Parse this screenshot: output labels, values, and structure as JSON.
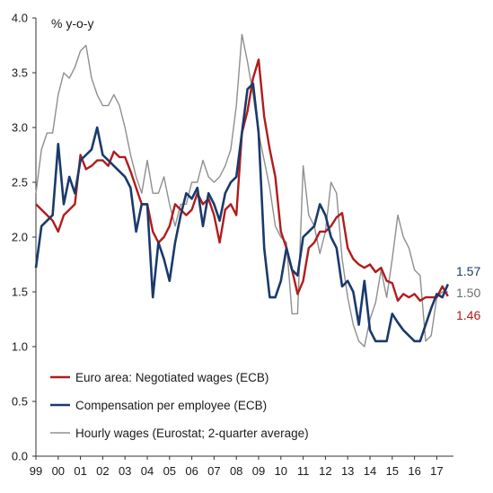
{
  "chart_data": {
    "type": "line",
    "unit_label": "% y-o-y",
    "ylim": [
      0.0,
      4.0
    ],
    "y_ticks": [
      "0.0",
      "0.5",
      "1.0",
      "1.5",
      "2.0",
      "2.5",
      "3.0",
      "3.5",
      "4.0"
    ],
    "x_range": [
      1999,
      2017.75
    ],
    "x_ticks": [
      "99",
      "00",
      "01",
      "02",
      "03",
      "04",
      "05",
      "06",
      "07",
      "08",
      "09",
      "10",
      "11",
      "12",
      "13",
      "14",
      "15",
      "16",
      "17"
    ],
    "grid": false,
    "legend_placement": "bottom-left",
    "series": [
      {
        "name": "Euro area: Negotiated wages (ECB)",
        "color": "#b01c1c",
        "values": [
          [
            1999.0,
            2.3
          ],
          [
            1999.25,
            2.25
          ],
          [
            1999.5,
            2.2
          ],
          [
            1999.75,
            2.15
          ],
          [
            2000.0,
            2.05
          ],
          [
            2000.25,
            2.2
          ],
          [
            2000.5,
            2.25
          ],
          [
            2000.75,
            2.3
          ],
          [
            2001.0,
            2.75
          ],
          [
            2001.25,
            2.62
          ],
          [
            2001.5,
            2.65
          ],
          [
            2001.75,
            2.7
          ],
          [
            2002.0,
            2.7
          ],
          [
            2002.25,
            2.65
          ],
          [
            2002.5,
            2.78
          ],
          [
            2002.75,
            2.73
          ],
          [
            2003.0,
            2.73
          ],
          [
            2003.25,
            2.6
          ],
          [
            2003.5,
            2.45
          ],
          [
            2003.75,
            2.3
          ],
          [
            2004.0,
            2.3
          ],
          [
            2004.25,
            2.05
          ],
          [
            2004.5,
            1.95
          ],
          [
            2004.75,
            2.0
          ],
          [
            2005.0,
            2.1
          ],
          [
            2005.25,
            2.3
          ],
          [
            2005.5,
            2.25
          ],
          [
            2005.75,
            2.2
          ],
          [
            2006.0,
            2.25
          ],
          [
            2006.25,
            2.4
          ],
          [
            2006.5,
            2.3
          ],
          [
            2006.75,
            2.35
          ],
          [
            2007.0,
            2.2
          ],
          [
            2007.25,
            1.95
          ],
          [
            2007.5,
            2.25
          ],
          [
            2007.75,
            2.3
          ],
          [
            2008.0,
            2.2
          ],
          [
            2008.25,
            2.95
          ],
          [
            2008.5,
            3.15
          ],
          [
            2008.75,
            3.45
          ],
          [
            2009.0,
            3.62
          ],
          [
            2009.25,
            3.1
          ],
          [
            2009.5,
            2.8
          ],
          [
            2009.75,
            2.55
          ],
          [
            2010.0,
            2.05
          ],
          [
            2010.25,
            1.9
          ],
          [
            2010.5,
            1.7
          ],
          [
            2010.75,
            1.48
          ],
          [
            2011.0,
            1.6
          ],
          [
            2011.25,
            1.9
          ],
          [
            2011.5,
            1.95
          ],
          [
            2011.75,
            2.05
          ],
          [
            2012.0,
            2.05
          ],
          [
            2012.25,
            2.1
          ],
          [
            2012.5,
            2.18
          ],
          [
            2012.75,
            2.22
          ],
          [
            2013.0,
            1.9
          ],
          [
            2013.25,
            1.8
          ],
          [
            2013.5,
            1.75
          ],
          [
            2013.75,
            1.72
          ],
          [
            2014.0,
            1.75
          ],
          [
            2014.25,
            1.68
          ],
          [
            2014.5,
            1.72
          ],
          [
            2014.75,
            1.6
          ],
          [
            2015.0,
            1.58
          ],
          [
            2015.25,
            1.42
          ],
          [
            2015.5,
            1.48
          ],
          [
            2015.75,
            1.45
          ],
          [
            2016.0,
            1.48
          ],
          [
            2016.25,
            1.42
          ],
          [
            2016.5,
            1.45
          ],
          [
            2016.75,
            1.45
          ],
          [
            2017.0,
            1.45
          ],
          [
            2017.25,
            1.55
          ],
          [
            2017.5,
            1.46
          ]
        ]
      },
      {
        "name": "Compensation per employee (ECB)",
        "color": "#1b3a6b",
        "values": [
          [
            1999.0,
            1.72
          ],
          [
            1999.25,
            2.1
          ],
          [
            1999.5,
            2.15
          ],
          [
            1999.75,
            2.2
          ],
          [
            2000.0,
            2.85
          ],
          [
            2000.25,
            2.3
          ],
          [
            2000.5,
            2.55
          ],
          [
            2000.75,
            2.4
          ],
          [
            2001.0,
            2.7
          ],
          [
            2001.25,
            2.75
          ],
          [
            2001.5,
            2.8
          ],
          [
            2001.75,
            3.0
          ],
          [
            2002.0,
            2.75
          ],
          [
            2002.25,
            2.7
          ],
          [
            2002.5,
            2.65
          ],
          [
            2002.75,
            2.6
          ],
          [
            2003.0,
            2.55
          ],
          [
            2003.25,
            2.45
          ],
          [
            2003.5,
            2.05
          ],
          [
            2003.75,
            2.3
          ],
          [
            2004.0,
            2.3
          ],
          [
            2004.25,
            1.45
          ],
          [
            2004.5,
            1.95
          ],
          [
            2004.75,
            1.8
          ],
          [
            2005.0,
            1.6
          ],
          [
            2005.25,
            1.95
          ],
          [
            2005.5,
            2.2
          ],
          [
            2005.75,
            2.4
          ],
          [
            2006.0,
            2.35
          ],
          [
            2006.25,
            2.45
          ],
          [
            2006.5,
            2.1
          ],
          [
            2006.75,
            2.4
          ],
          [
            2007.0,
            2.3
          ],
          [
            2007.25,
            2.15
          ],
          [
            2007.5,
            2.4
          ],
          [
            2007.75,
            2.5
          ],
          [
            2008.0,
            2.55
          ],
          [
            2008.25,
            2.95
          ],
          [
            2008.5,
            3.35
          ],
          [
            2008.75,
            3.4
          ],
          [
            2009.0,
            2.95
          ],
          [
            2009.25,
            1.9
          ],
          [
            2009.5,
            1.45
          ],
          [
            2009.75,
            1.45
          ],
          [
            2010.0,
            1.6
          ],
          [
            2010.25,
            1.9
          ],
          [
            2010.5,
            1.7
          ],
          [
            2010.75,
            1.65
          ],
          [
            2011.0,
            2.0
          ],
          [
            2011.25,
            2.05
          ],
          [
            2011.5,
            2.1
          ],
          [
            2011.75,
            2.3
          ],
          [
            2012.0,
            2.2
          ],
          [
            2012.25,
            2.0
          ],
          [
            2012.5,
            1.9
          ],
          [
            2012.75,
            1.55
          ],
          [
            2013.0,
            1.6
          ],
          [
            2013.25,
            1.5
          ],
          [
            2013.5,
            1.2
          ],
          [
            2013.75,
            1.6
          ],
          [
            2014.0,
            1.15
          ],
          [
            2014.25,
            1.05
          ],
          [
            2014.5,
            1.05
          ],
          [
            2014.75,
            1.05
          ],
          [
            2015.0,
            1.3
          ],
          [
            2015.25,
            1.22
          ],
          [
            2015.5,
            1.15
          ],
          [
            2015.75,
            1.1
          ],
          [
            2016.0,
            1.05
          ],
          [
            2016.25,
            1.05
          ],
          [
            2016.5,
            1.2
          ],
          [
            2016.75,
            1.35
          ],
          [
            2017.0,
            1.48
          ],
          [
            2017.25,
            1.45
          ],
          [
            2017.5,
            1.57
          ]
        ]
      },
      {
        "name": "Hourly wages (Eurostat; 2-quarter average)",
        "color": "#8f8f8f",
        "values": [
          [
            1999.0,
            2.4
          ],
          [
            1999.25,
            2.8
          ],
          [
            1999.5,
            2.95
          ],
          [
            1999.75,
            2.95
          ],
          [
            2000.0,
            3.3
          ],
          [
            2000.25,
            3.5
          ],
          [
            2000.5,
            3.45
          ],
          [
            2000.75,
            3.55
          ],
          [
            2001.0,
            3.7
          ],
          [
            2001.25,
            3.75
          ],
          [
            2001.5,
            3.45
          ],
          [
            2001.75,
            3.3
          ],
          [
            2002.0,
            3.2
          ],
          [
            2002.25,
            3.2
          ],
          [
            2002.5,
            3.3
          ],
          [
            2002.75,
            3.2
          ],
          [
            2003.0,
            3.0
          ],
          [
            2003.25,
            2.75
          ],
          [
            2003.5,
            2.55
          ],
          [
            2003.75,
            2.4
          ],
          [
            2004.0,
            2.7
          ],
          [
            2004.25,
            2.4
          ],
          [
            2004.5,
            2.4
          ],
          [
            2004.75,
            2.55
          ],
          [
            2005.0,
            2.3
          ],
          [
            2005.25,
            2.1
          ],
          [
            2005.5,
            2.3
          ],
          [
            2005.75,
            2.3
          ],
          [
            2006.0,
            2.5
          ],
          [
            2006.25,
            2.5
          ],
          [
            2006.5,
            2.7
          ],
          [
            2006.75,
            2.55
          ],
          [
            2007.0,
            2.5
          ],
          [
            2007.25,
            2.55
          ],
          [
            2007.5,
            2.65
          ],
          [
            2007.75,
            2.8
          ],
          [
            2008.0,
            3.2
          ],
          [
            2008.25,
            3.85
          ],
          [
            2008.5,
            3.6
          ],
          [
            2008.75,
            3.3
          ],
          [
            2009.0,
            2.95
          ],
          [
            2009.25,
            2.7
          ],
          [
            2009.5,
            2.45
          ],
          [
            2009.75,
            2.1
          ],
          [
            2010.0,
            2.0
          ],
          [
            2010.25,
            1.95
          ],
          [
            2010.5,
            1.3
          ],
          [
            2010.75,
            1.3
          ],
          [
            2011.0,
            2.65
          ],
          [
            2011.25,
            2.2
          ],
          [
            2011.5,
            2.1
          ],
          [
            2011.75,
            1.85
          ],
          [
            2012.0,
            2.05
          ],
          [
            2012.25,
            2.5
          ],
          [
            2012.5,
            2.4
          ],
          [
            2012.75,
            1.8
          ],
          [
            2013.0,
            1.45
          ],
          [
            2013.25,
            1.2
          ],
          [
            2013.5,
            1.05
          ],
          [
            2013.75,
            1.0
          ],
          [
            2014.0,
            1.25
          ],
          [
            2014.25,
            1.4
          ],
          [
            2014.5,
            1.7
          ],
          [
            2014.75,
            1.45
          ],
          [
            2015.0,
            1.8
          ],
          [
            2015.25,
            2.2
          ],
          [
            2015.5,
            2.0
          ],
          [
            2015.75,
            1.9
          ],
          [
            2016.0,
            1.7
          ],
          [
            2016.25,
            1.65
          ],
          [
            2016.5,
            1.05
          ],
          [
            2016.75,
            1.1
          ],
          [
            2017.0,
            1.45
          ],
          [
            2017.25,
            1.5
          ],
          [
            2017.5,
            1.5
          ]
        ]
      }
    ],
    "end_labels": [
      {
        "text": "1.57",
        "color": "#1b3a6b"
      },
      {
        "text": "1.50",
        "color": "#6e6e6e"
      },
      {
        "text": "1.46",
        "color": "#b01c1c"
      }
    ]
  }
}
